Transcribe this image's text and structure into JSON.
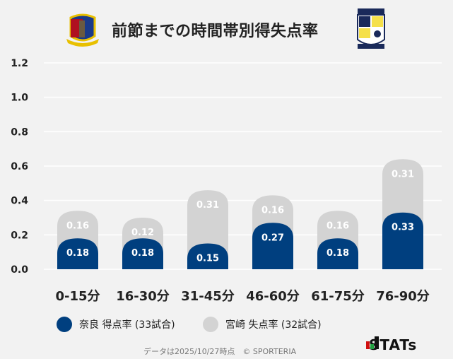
{
  "title": "前節までの時間帯別得失点率",
  "chart_data": {
    "type": "bar",
    "stacked": true,
    "categories": [
      "0-15分",
      "16-30分",
      "31-45分",
      "46-60分",
      "61-75分",
      "76-90分"
    ],
    "series": [
      {
        "name": "奈良 得点率 (33試合)",
        "color": "#003f7f",
        "values": [
          0.18,
          0.18,
          0.15,
          0.27,
          0.18,
          0.33
        ]
      },
      {
        "name": "宮崎 失点率 (32試合)",
        "color": "#d3d3d3",
        "values": [
          0.16,
          0.12,
          0.31,
          0.16,
          0.16,
          0.31
        ]
      }
    ],
    "yticks": [
      "0.0",
      "0.2",
      "0.4",
      "0.6",
      "0.8",
      "1.0",
      "1.2"
    ],
    "ylim": [
      0,
      1.2
    ],
    "grid": true,
    "legend_placement": "bottom"
  },
  "legend": {
    "nara": "奈良 得点率 (33試合)",
    "miyazaki": "宮崎 失点率 (32試合)"
  },
  "footer": "データは2025/10/27時点　© SPORTERIA",
  "brand": "STATs",
  "logos": {
    "home": "NARA CLUB",
    "away": "TEGEVAJARO MIYAZAKI"
  }
}
